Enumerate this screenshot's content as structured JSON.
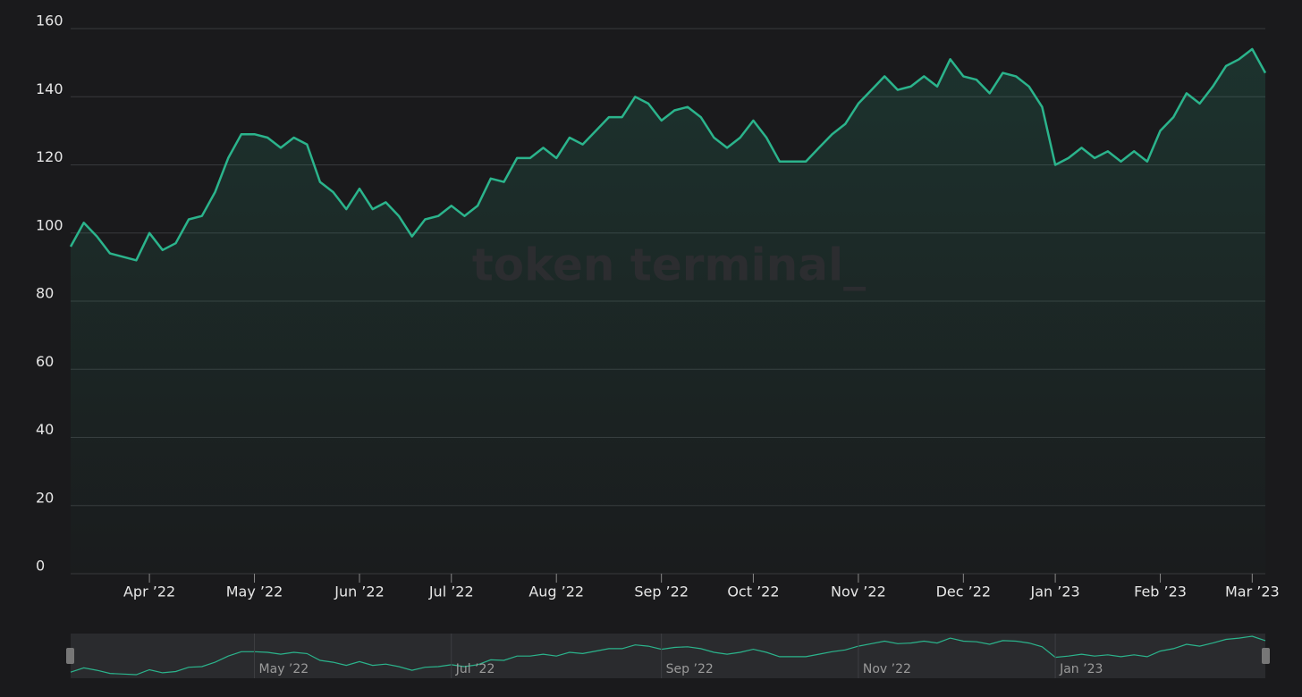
{
  "chart_data": {
    "type": "line",
    "watermark": "token terminal_",
    "categories": [
      null,
      null,
      null,
      null,
      null,
      null,
      "Apr ’22",
      null,
      null,
      null,
      null,
      null,
      null,
      null,
      "May ’22",
      null,
      null,
      null,
      null,
      null,
      null,
      null,
      "Jun ’22",
      null,
      null,
      null,
      null,
      null,
      null,
      "Jul ’22",
      null,
      null,
      null,
      null,
      null,
      null,
      null,
      "Aug ’22",
      null,
      null,
      null,
      null,
      null,
      null,
      null,
      "Sep ’22",
      null,
      null,
      null,
      null,
      null,
      null,
      "Oct ’22",
      null,
      null,
      null,
      null,
      null,
      null,
      null,
      "Nov ’22",
      null,
      null,
      null,
      null,
      null,
      null,
      null,
      "Dec ’22",
      null,
      null,
      null,
      null,
      null,
      null,
      "Jan ’23",
      null,
      null,
      null,
      null,
      null,
      null,
      null,
      "Feb ’23",
      null,
      null,
      null,
      null,
      null,
      null,
      "Mar ’23",
      null
    ],
    "series": [
      {
        "color": "#2bb48c",
        "values": [
          96,
          103,
          99,
          94,
          93,
          92,
          100,
          95,
          97,
          104,
          105,
          112,
          122,
          129,
          129,
          128,
          125,
          128,
          126,
          115,
          112,
          107,
          113,
          107,
          109,
          105,
          99,
          104,
          105,
          108,
          105,
          108,
          116,
          115,
          122,
          122,
          125,
          122,
          128,
          126,
          130,
          134,
          134,
          140,
          138,
          133,
          136,
          137,
          134,
          128,
          125,
          128,
          133,
          128,
          121,
          121,
          121,
          125,
          129,
          132,
          138,
          142,
          146,
          142,
          143,
          146,
          143,
          151,
          146,
          145,
          141,
          147,
          146,
          143,
          137,
          120,
          122,
          125,
          122,
          124,
          121,
          124,
          121,
          130,
          134,
          141,
          138,
          143,
          149,
          151,
          154,
          147
        ]
      }
    ],
    "ylim": [
      0,
      160
    ],
    "yticks": [
      0,
      20,
      40,
      60,
      80,
      100,
      120,
      140,
      160
    ],
    "grid": true,
    "navigator": {
      "labels": [
        "May ’22",
        "Jul ’22",
        "Sep ’22",
        "Nov ’22",
        "Jan ’23"
      ]
    }
  }
}
